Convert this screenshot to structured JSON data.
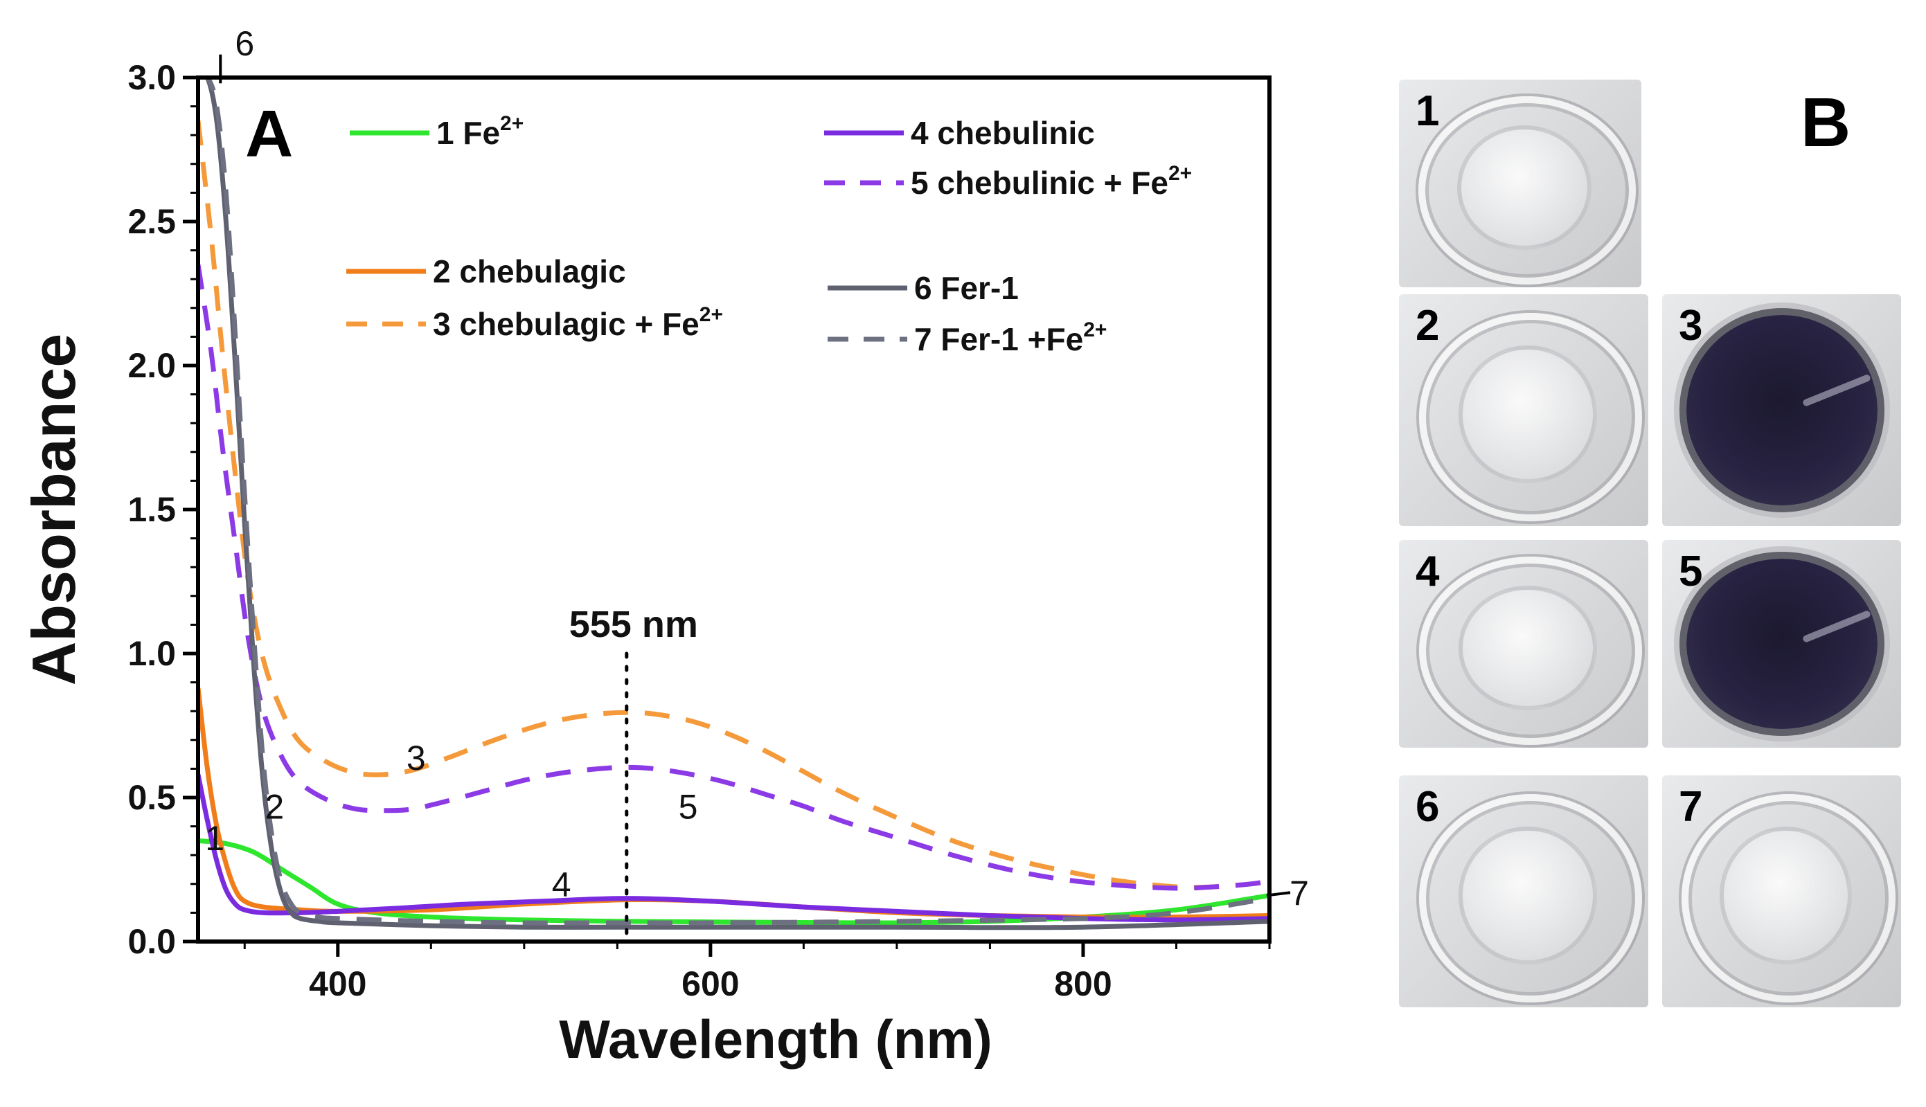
{
  "chart_data": {
    "type": "line",
    "panel_label": "A",
    "xlabel": "Wavelength (nm)",
    "ylabel": "Absorbance",
    "xlim": [
      325,
      900
    ],
    "ylim": [
      0.0,
      3.0
    ],
    "x_ticks": [
      400,
      600,
      800
    ],
    "y_ticks": [
      0.0,
      0.5,
      1.0,
      1.5,
      2.0,
      2.5,
      3.0
    ],
    "y_tick_labels": [
      "0.0",
      "0.5",
      "1.0",
      "1.5",
      "2.0",
      "2.5",
      "3.0"
    ],
    "annotation": {
      "text": "555 nm",
      "x": 555
    },
    "series": [
      {
        "id": "1",
        "name": "1 Fe",
        "superscript": "2+",
        "color": "#2ee62e",
        "dash": false,
        "points": [
          [
            325,
            0.35
          ],
          [
            340,
            0.34
          ],
          [
            355,
            0.31
          ],
          [
            370,
            0.25
          ],
          [
            385,
            0.19
          ],
          [
            400,
            0.13
          ],
          [
            420,
            0.1
          ],
          [
            450,
            0.085
          ],
          [
            500,
            0.075
          ],
          [
            555,
            0.07
          ],
          [
            600,
            0.068
          ],
          [
            650,
            0.066
          ],
          [
            700,
            0.065
          ],
          [
            750,
            0.07
          ],
          [
            800,
            0.085
          ],
          [
            850,
            0.11
          ],
          [
            900,
            0.16
          ]
        ]
      },
      {
        "id": "2",
        "name": "2 chebulagic",
        "superscript": "",
        "color": "#f07d19",
        "dash": false,
        "points": [
          [
            325,
            0.88
          ],
          [
            330,
            0.6
          ],
          [
            335,
            0.4
          ],
          [
            340,
            0.27
          ],
          [
            345,
            0.18
          ],
          [
            350,
            0.14
          ],
          [
            360,
            0.12
          ],
          [
            380,
            0.11
          ],
          [
            400,
            0.105
          ],
          [
            450,
            0.11
          ],
          [
            500,
            0.13
          ],
          [
            555,
            0.145
          ],
          [
            600,
            0.14
          ],
          [
            650,
            0.12
          ],
          [
            700,
            0.1
          ],
          [
            750,
            0.09
          ],
          [
            800,
            0.085
          ],
          [
            850,
            0.085
          ],
          [
            900,
            0.09
          ]
        ]
      },
      {
        "id": "3",
        "name": "3 chebulagic + Fe",
        "superscript": "2+",
        "color": "#f59a3a",
        "dash": true,
        "points": [
          [
            325,
            2.85
          ],
          [
            332,
            2.45
          ],
          [
            338,
            2.05
          ],
          [
            345,
            1.62
          ],
          [
            352,
            1.25
          ],
          [
            360,
            0.98
          ],
          [
            370,
            0.8
          ],
          [
            380,
            0.69
          ],
          [
            395,
            0.62
          ],
          [
            410,
            0.585
          ],
          [
            425,
            0.58
          ],
          [
            440,
            0.595
          ],
          [
            460,
            0.64
          ],
          [
            480,
            0.69
          ],
          [
            500,
            0.735
          ],
          [
            520,
            0.77
          ],
          [
            540,
            0.79
          ],
          [
            555,
            0.795
          ],
          [
            570,
            0.79
          ],
          [
            590,
            0.765
          ],
          [
            610,
            0.72
          ],
          [
            630,
            0.66
          ],
          [
            650,
            0.59
          ],
          [
            670,
            0.52
          ],
          [
            700,
            0.43
          ],
          [
            730,
            0.35
          ],
          [
            760,
            0.29
          ],
          [
            790,
            0.245
          ],
          [
            820,
            0.21
          ],
          [
            850,
            0.19
          ],
          [
            870,
            0.19
          ],
          [
            890,
            0.2
          ],
          [
            900,
            0.21
          ]
        ]
      },
      {
        "id": "4",
        "name": "4 chebulinic",
        "superscript": "",
        "color": "#7a2be0",
        "dash": false,
        "points": [
          [
            325,
            0.58
          ],
          [
            330,
            0.42
          ],
          [
            335,
            0.28
          ],
          [
            340,
            0.18
          ],
          [
            345,
            0.13
          ],
          [
            350,
            0.11
          ],
          [
            360,
            0.1
          ],
          [
            380,
            0.1
          ],
          [
            400,
            0.105
          ],
          [
            430,
            0.115
          ],
          [
            470,
            0.13
          ],
          [
            510,
            0.14
          ],
          [
            555,
            0.15
          ],
          [
            600,
            0.14
          ],
          [
            650,
            0.12
          ],
          [
            700,
            0.105
          ],
          [
            750,
            0.09
          ],
          [
            800,
            0.08
          ],
          [
            850,
            0.075
          ],
          [
            900,
            0.08
          ]
        ]
      },
      {
        "id": "5",
        "name": "5 chebulinic  + Fe",
        "superscript": "2+",
        "color": "#8b3ae6",
        "dash": true,
        "points": [
          [
            325,
            2.35
          ],
          [
            332,
            2.05
          ],
          [
            338,
            1.72
          ],
          [
            345,
            1.38
          ],
          [
            352,
            1.05
          ],
          [
            360,
            0.8
          ],
          [
            370,
            0.64
          ],
          [
            380,
            0.55
          ],
          [
            395,
            0.49
          ],
          [
            410,
            0.46
          ],
          [
            425,
            0.455
          ],
          [
            440,
            0.46
          ],
          [
            460,
            0.49
          ],
          [
            480,
            0.525
          ],
          [
            500,
            0.56
          ],
          [
            520,
            0.585
          ],
          [
            540,
            0.6
          ],
          [
            555,
            0.605
          ],
          [
            570,
            0.6
          ],
          [
            590,
            0.58
          ],
          [
            610,
            0.55
          ],
          [
            630,
            0.51
          ],
          [
            650,
            0.47
          ],
          [
            670,
            0.42
          ],
          [
            700,
            0.36
          ],
          [
            730,
            0.3
          ],
          [
            760,
            0.25
          ],
          [
            790,
            0.215
          ],
          [
            820,
            0.195
          ],
          [
            850,
            0.185
          ],
          [
            870,
            0.19
          ],
          [
            890,
            0.2
          ],
          [
            900,
            0.21
          ]
        ]
      },
      {
        "id": "6",
        "name": "6 Fer-1",
        "superscript": "",
        "color": "#5f6170",
        "dash": false,
        "points": [
          [
            325,
            3.0
          ],
          [
            330,
            3.0
          ],
          [
            335,
            2.85
          ],
          [
            340,
            2.5
          ],
          [
            345,
            2.0
          ],
          [
            350,
            1.45
          ],
          [
            355,
            0.95
          ],
          [
            360,
            0.55
          ],
          [
            365,
            0.3
          ],
          [
            370,
            0.16
          ],
          [
            375,
            0.1
          ],
          [
            380,
            0.08
          ],
          [
            390,
            0.07
          ],
          [
            400,
            0.065
          ],
          [
            450,
            0.055
          ],
          [
            500,
            0.05
          ],
          [
            555,
            0.05
          ],
          [
            600,
            0.05
          ],
          [
            700,
            0.05
          ],
          [
            800,
            0.05
          ],
          [
            900,
            0.07
          ]
        ]
      },
      {
        "id": "7",
        "name": "7 Fer-1 +Fe",
        "superscript": "2+",
        "color": "#6c7080",
        "dash": true,
        "points": [
          [
            325,
            3.0
          ],
          [
            330,
            3.0
          ],
          [
            335,
            2.9
          ],
          [
            340,
            2.6
          ],
          [
            345,
            2.1
          ],
          [
            350,
            1.55
          ],
          [
            355,
            1.05
          ],
          [
            360,
            0.62
          ],
          [
            365,
            0.35
          ],
          [
            370,
            0.2
          ],
          [
            375,
            0.13
          ],
          [
            380,
            0.1
          ],
          [
            390,
            0.085
          ],
          [
            400,
            0.08
          ],
          [
            450,
            0.07
          ],
          [
            500,
            0.065
          ],
          [
            555,
            0.065
          ],
          [
            600,
            0.065
          ],
          [
            700,
            0.07
          ],
          [
            800,
            0.08
          ],
          [
            850,
            0.1
          ],
          [
            900,
            0.15
          ]
        ]
      }
    ],
    "curve_labels": [
      {
        "text": "1",
        "x": 334,
        "y": 0.36
      },
      {
        "text": "2",
        "x": 366,
        "y": 0.47
      },
      {
        "text": "3",
        "x": 442,
        "y": 0.64
      },
      {
        "text": "4",
        "x": 520,
        "y": 0.2
      },
      {
        "text": "5",
        "x": 588,
        "y": 0.47
      },
      {
        "text": "6",
        "x": 350,
        "y": 3.12
      },
      {
        "text": "7",
        "x": 916,
        "y": 0.17
      }
    ]
  },
  "panel_b": {
    "label": "B",
    "wells": [
      {
        "num": "1",
        "appearance": "clear"
      },
      {
        "num": "2",
        "appearance": "clear"
      },
      {
        "num": "3",
        "appearance": "dark-purple"
      },
      {
        "num": "4",
        "appearance": "clear"
      },
      {
        "num": "5",
        "appearance": "dark-purple"
      },
      {
        "num": "6",
        "appearance": "clear"
      },
      {
        "num": "7",
        "appearance": "clear"
      }
    ]
  }
}
